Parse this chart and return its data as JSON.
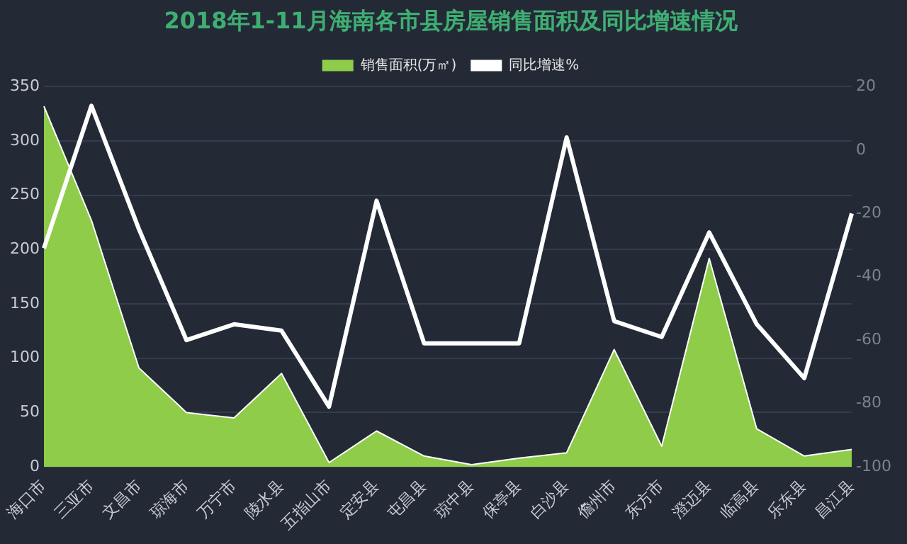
{
  "chart_data": {
    "type": "area",
    "title": "2018年1-11月海南各市县房屋销售面积及同比增速情况",
    "categories": [
      "海口市",
      "三亚市",
      "文昌市",
      "琼海市",
      "万宁市",
      "陵水县",
      "五指山市",
      "定安县",
      "屯昌县",
      "琼中县",
      "保亭县",
      "白沙县",
      "儋州市",
      "东方市",
      "澄迈县",
      "临高县",
      "乐东县",
      "昌江县"
    ],
    "series": [
      {
        "name": "销售面积(万㎡)",
        "color": "#8fcc4a",
        "values": [
          332,
          227,
          91,
          50,
          45,
          86,
          4,
          33,
          10,
          2,
          8,
          13,
          108,
          19,
          192,
          35,
          10,
          16
        ]
      },
      {
        "name": "同比增速%",
        "type": "line",
        "axis": "y2",
        "color": "#ffffff",
        "values": [
          -31,
          14,
          -25,
          -60,
          -55,
          -57,
          -81,
          -16,
          -61,
          -61,
          -61,
          4,
          -54,
          -59,
          -26,
          -55,
          -72,
          -20
        ]
      }
    ],
    "ylim": [
      0,
      350
    ],
    "yticks": [
      0,
      50,
      100,
      150,
      200,
      250,
      300,
      350
    ],
    "y2lim": [
      -100,
      20
    ],
    "y2ticks": [
      -100,
      -80,
      -60,
      -40,
      -20,
      0,
      20
    ],
    "grid": "y",
    "legend": "top",
    "marker": "none"
  }
}
